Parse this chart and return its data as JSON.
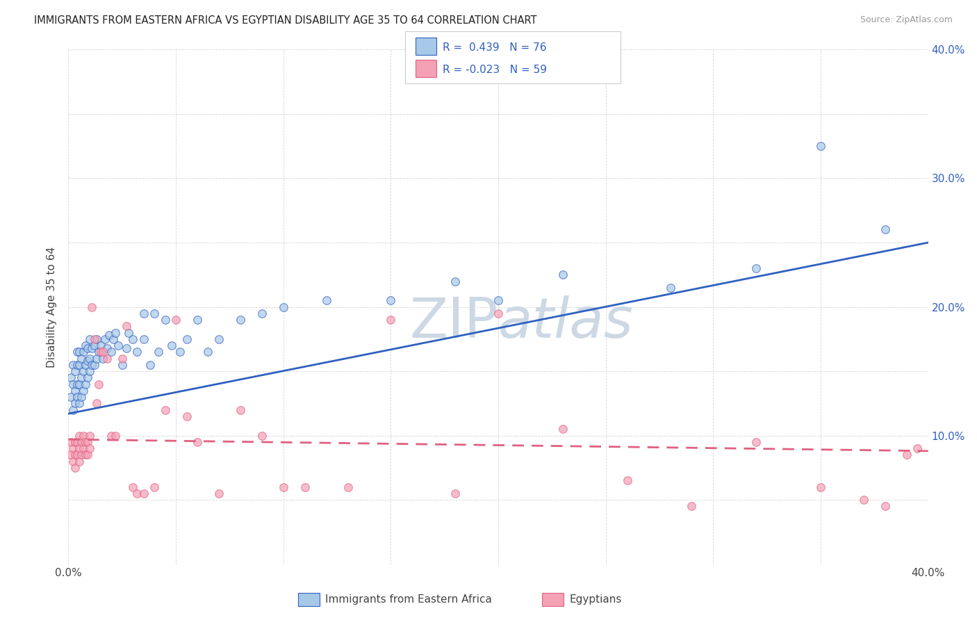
{
  "title": "IMMIGRANTS FROM EASTERN AFRICA VS EGYPTIAN DISABILITY AGE 35 TO 64 CORRELATION CHART",
  "source": "Source: ZipAtlas.com",
  "ylabel": "Disability Age 35 to 64",
  "xlabel_legend1": "Immigrants from Eastern Africa",
  "xlabel_legend2": "Egyptians",
  "r1": 0.439,
  "n1": 76,
  "r2": -0.023,
  "n2": 59,
  "xlim": [
    0.0,
    0.4
  ],
  "ylim": [
    0.0,
    0.4
  ],
  "xticks": [
    0.0,
    0.05,
    0.1,
    0.15,
    0.2,
    0.25,
    0.3,
    0.35,
    0.4
  ],
  "yticks": [
    0.0,
    0.05,
    0.1,
    0.15,
    0.2,
    0.25,
    0.3,
    0.35,
    0.4
  ],
  "color_blue": "#a8c8e8",
  "color_pink": "#f4a0b5",
  "line_blue": "#3060c0",
  "line_pink": "#e06080",
  "watermark_color": "#ccd8e4",
  "background_color": "#ffffff",
  "blue_x": [
    0.001,
    0.001,
    0.002,
    0.002,
    0.002,
    0.003,
    0.003,
    0.003,
    0.004,
    0.004,
    0.004,
    0.004,
    0.005,
    0.005,
    0.005,
    0.005,
    0.006,
    0.006,
    0.006,
    0.007,
    0.007,
    0.007,
    0.008,
    0.008,
    0.008,
    0.009,
    0.009,
    0.009,
    0.01,
    0.01,
    0.01,
    0.011,
    0.011,
    0.012,
    0.012,
    0.013,
    0.013,
    0.014,
    0.015,
    0.016,
    0.017,
    0.018,
    0.019,
    0.02,
    0.021,
    0.022,
    0.023,
    0.025,
    0.027,
    0.028,
    0.03,
    0.032,
    0.035,
    0.035,
    0.038,
    0.04,
    0.042,
    0.045,
    0.048,
    0.052,
    0.055,
    0.06,
    0.065,
    0.07,
    0.08,
    0.09,
    0.1,
    0.12,
    0.15,
    0.18,
    0.2,
    0.23,
    0.28,
    0.32,
    0.35,
    0.38
  ],
  "blue_y": [
    0.13,
    0.145,
    0.12,
    0.14,
    0.155,
    0.125,
    0.135,
    0.15,
    0.13,
    0.14,
    0.155,
    0.165,
    0.125,
    0.14,
    0.155,
    0.165,
    0.13,
    0.145,
    0.16,
    0.135,
    0.15,
    0.165,
    0.14,
    0.155,
    0.17,
    0.145,
    0.158,
    0.168,
    0.15,
    0.16,
    0.175,
    0.155,
    0.168,
    0.155,
    0.17,
    0.16,
    0.175,
    0.165,
    0.17,
    0.16,
    0.175,
    0.168,
    0.178,
    0.165,
    0.175,
    0.18,
    0.17,
    0.155,
    0.168,
    0.18,
    0.175,
    0.165,
    0.175,
    0.195,
    0.155,
    0.195,
    0.165,
    0.19,
    0.17,
    0.165,
    0.175,
    0.19,
    0.165,
    0.175,
    0.19,
    0.195,
    0.2,
    0.205,
    0.205,
    0.22,
    0.205,
    0.225,
    0.215,
    0.23,
    0.325,
    0.26
  ],
  "pink_x": [
    0.001,
    0.001,
    0.002,
    0.002,
    0.003,
    0.003,
    0.003,
    0.004,
    0.004,
    0.005,
    0.005,
    0.005,
    0.006,
    0.006,
    0.007,
    0.007,
    0.008,
    0.008,
    0.009,
    0.009,
    0.01,
    0.01,
    0.011,
    0.012,
    0.013,
    0.014,
    0.015,
    0.016,
    0.018,
    0.02,
    0.022,
    0.025,
    0.027,
    0.03,
    0.032,
    0.035,
    0.04,
    0.045,
    0.05,
    0.055,
    0.06,
    0.07,
    0.08,
    0.09,
    0.1,
    0.11,
    0.13,
    0.15,
    0.18,
    0.2,
    0.23,
    0.26,
    0.29,
    0.32,
    0.35,
    0.37,
    0.38,
    0.39,
    0.395
  ],
  "pink_y": [
    0.095,
    0.085,
    0.09,
    0.08,
    0.095,
    0.085,
    0.075,
    0.095,
    0.085,
    0.1,
    0.09,
    0.08,
    0.095,
    0.085,
    0.1,
    0.09,
    0.095,
    0.085,
    0.095,
    0.085,
    0.1,
    0.09,
    0.2,
    0.175,
    0.125,
    0.14,
    0.165,
    0.165,
    0.16,
    0.1,
    0.1,
    0.16,
    0.185,
    0.06,
    0.055,
    0.055,
    0.06,
    0.12,
    0.19,
    0.115,
    0.095,
    0.055,
    0.12,
    0.1,
    0.06,
    0.06,
    0.06,
    0.19,
    0.055,
    0.195,
    0.105,
    0.065,
    0.045,
    0.095,
    0.06,
    0.05,
    0.045,
    0.085,
    0.09
  ]
}
